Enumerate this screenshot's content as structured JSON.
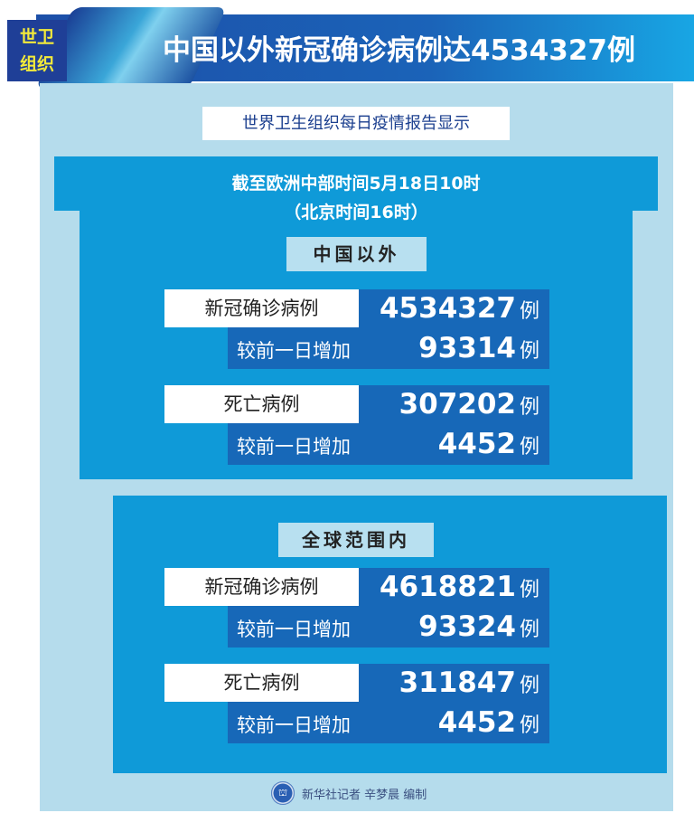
{
  "header": {
    "tag_line1": "世卫",
    "tag_line2": "组织",
    "title": "中国以外新冠确诊病例达4534327例"
  },
  "subtitle": "世界卫生组织每日疫情报告显示",
  "time": {
    "line1": "截至欧洲中部时间5月18日10时",
    "line2": "（北京时间16时）"
  },
  "sections": [
    {
      "label": "中国以外",
      "confirmed": {
        "label": "新冠确诊病例",
        "value": "4534327",
        "unit": "例"
      },
      "confirmed_increase": {
        "label": "较前一日增加",
        "value": "93314",
        "unit": "例"
      },
      "deaths": {
        "label": "死亡病例",
        "value": "307202",
        "unit": "例"
      },
      "deaths_increase": {
        "label": "较前一日增加",
        "value": "4452",
        "unit": "例"
      }
    },
    {
      "label": "全球范围内",
      "confirmed": {
        "label": "新冠确诊病例",
        "value": "4618821",
        "unit": "例"
      },
      "confirmed_increase": {
        "label": "较前一日增加",
        "value": "93324",
        "unit": "例"
      },
      "deaths": {
        "label": "死亡病例",
        "value": "311847",
        "unit": "例"
      },
      "deaths_increase": {
        "label": "较前一日增加",
        "value": "4452",
        "unit": "例"
      }
    }
  ],
  "footer": {
    "credit": "新华社记者 辛梦晨 编制",
    "logo_icon": "xinhua-logo-icon"
  },
  "colors": {
    "panel": "#b5dcec",
    "box": "#0f9ad8",
    "dark": "#1768b8",
    "tag_text": "#f3ea3a"
  }
}
